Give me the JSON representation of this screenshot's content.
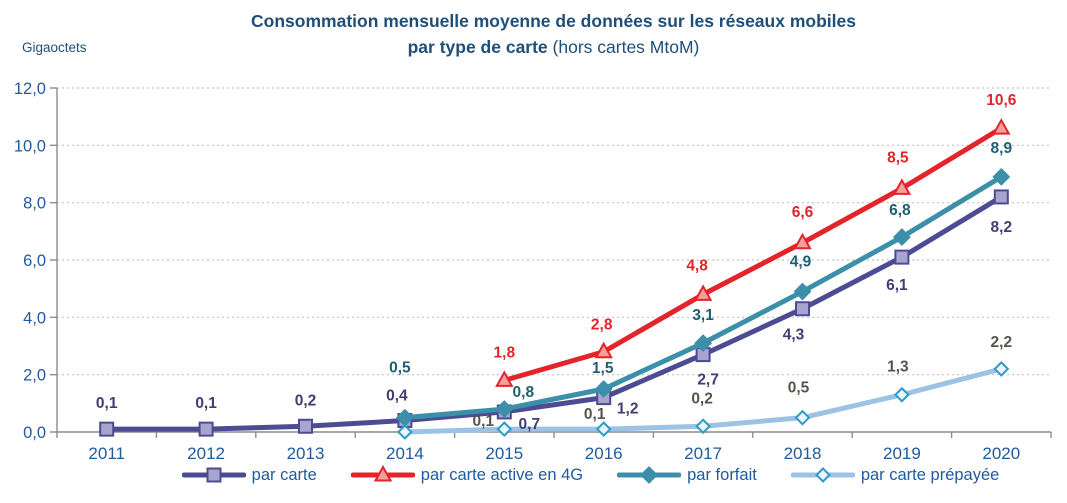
{
  "chart_data": {
    "type": "line",
    "title_line1": "Consommation mensuelle moyenne de données sur  les réseaux mobiles",
    "title_line2_bold": "par type de carte",
    "title_line2_normal": " (hors cartes MtoM)",
    "unit_label": "Gigaoctets",
    "title_color": "#1F4E79",
    "axis_text_color": "#215A9E",
    "grid_color": "#C3C3C3",
    "axis_color": "#8C8C8C",
    "background": "#FFFFFF",
    "grid": "dotted-horizontal",
    "legend_position": "bottom",
    "ylim": [
      0,
      12
    ],
    "categories": [
      "2011",
      "2012",
      "2013",
      "2014",
      "2015",
      "2016",
      "2017",
      "2018",
      "2019",
      "2020"
    ],
    "y_ticks": [
      {
        "v": 0,
        "label": "0,0"
      },
      {
        "v": 2,
        "label": "2,0"
      },
      {
        "v": 4,
        "label": "4,0"
      },
      {
        "v": 6,
        "label": "6,0"
      },
      {
        "v": 8,
        "label": "8,0"
      },
      {
        "v": 10,
        "label": "10,0"
      },
      {
        "v": 12,
        "label": "12,0"
      }
    ],
    "series": [
      {
        "name": "par carte",
        "line_color": "#4D4C93",
        "marker": "square",
        "marker_fill": "#A7A5CF",
        "marker_stroke": "#4D4C93",
        "label_color": "#3F3E70",
        "points": [
          {
            "x": "2011",
            "y": 0.1,
            "label": "0,1",
            "dx": 0,
            "dy": -26
          },
          {
            "x": "2012",
            "y": 0.1,
            "label": "0,1",
            "dx": 0,
            "dy": -26
          },
          {
            "x": "2013",
            "y": 0.2,
            "label": "0,2",
            "dx": 0,
            "dy": -26
          },
          {
            "x": "2014",
            "y": 0.4,
            "label": "0,4",
            "dx": -8,
            "dy": -25
          },
          {
            "x": "2015",
            "y": 0.7,
            "label": "0,7",
            "dx": 25,
            "dy": 12
          },
          {
            "x": "2016",
            "y": 1.2,
            "label": "1,2",
            "dx": 24,
            "dy": 11
          },
          {
            "x": "2017",
            "y": 2.7,
            "label": "2,7",
            "dx": 5,
            "dy": 25
          },
          {
            "x": "2018",
            "y": 4.3,
            "label": "4,3",
            "dx": -9,
            "dy": 26
          },
          {
            "x": "2019",
            "y": 6.1,
            "label": "6,1",
            "dx": -5,
            "dy": 28
          },
          {
            "x": "2020",
            "y": 8.2,
            "label": "8,2",
            "dx": 0,
            "dy": 30
          }
        ]
      },
      {
        "name": "par carte active en 4G",
        "line_color": "#E4242B",
        "marker": "triangle",
        "marker_fill": "#F5A09B",
        "marker_stroke": "#E4242B",
        "label_color": "#E4242B",
        "points": [
          {
            "x": "2015",
            "y": 1.8,
            "label": "1,8",
            "dx": 0,
            "dy": -28
          },
          {
            "x": "2016",
            "y": 2.8,
            "label": "2,8",
            "dx": -2,
            "dy": -27
          },
          {
            "x": "2017",
            "y": 4.8,
            "label": "4,8",
            "dx": -6,
            "dy": -29
          },
          {
            "x": "2018",
            "y": 6.6,
            "label": "6,6",
            "dx": 0,
            "dy": -31
          },
          {
            "x": "2019",
            "y": 8.5,
            "label": "8,5",
            "dx": -4,
            "dy": -31
          },
          {
            "x": "2020",
            "y": 10.6,
            "label": "10,6",
            "dx": 0,
            "dy": -28
          }
        ]
      },
      {
        "name": "par forfait",
        "line_color": "#3B8FA9",
        "marker": "diamond",
        "marker_fill": "#3B8FA9",
        "marker_stroke": "#3B8FA9",
        "label_color": "#1F5F73",
        "points": [
          {
            "x": "2014",
            "y": 0.5,
            "label": "0,5",
            "dx": -5,
            "dy": -50
          },
          {
            "x": "2015",
            "y": 0.8,
            "label": "0,8",
            "dx": 19,
            "dy": -17
          },
          {
            "x": "2016",
            "y": 1.5,
            "label": "1,5",
            "dx": -1,
            "dy": -21
          },
          {
            "x": "2017",
            "y": 3.1,
            "label": "3,1",
            "dx": 0,
            "dy": -28
          },
          {
            "x": "2018",
            "y": 4.9,
            "label": "4,9",
            "dx": -2,
            "dy": -30
          },
          {
            "x": "2019",
            "y": 6.8,
            "label": "6,8",
            "dx": -2,
            "dy": -27
          },
          {
            "x": "2020",
            "y": 8.9,
            "label": "8,9",
            "dx": 0,
            "dy": -29
          }
        ]
      },
      {
        "name": "par carte prépayée",
        "line_color": "#9CC3E5",
        "marker": "diamond-open",
        "marker_fill": "#EAF4FB",
        "marker_stroke": "#2F9AC5",
        "label_color": "#57544B",
        "points": [
          {
            "x": "2014",
            "y": 0.0,
            "label": "",
            "dx": 0,
            "dy": 0
          },
          {
            "x": "2015",
            "y": 0.1,
            "label": "0,1",
            "dx": -21,
            "dy": -8
          },
          {
            "x": "2016",
            "y": 0.1,
            "label": "0,1",
            "dx": -9,
            "dy": -15
          },
          {
            "x": "2017",
            "y": 0.2,
            "label": "0,2",
            "dx": -1,
            "dy": -28
          },
          {
            "x": "2018",
            "y": 0.5,
            "label": "0,5",
            "dx": -4,
            "dy": -30
          },
          {
            "x": "2019",
            "y": 1.3,
            "label": "1,3",
            "dx": -4,
            "dy": -28
          },
          {
            "x": "2020",
            "y": 2.2,
            "label": "2,2",
            "dx": 0,
            "dy": -27
          }
        ]
      }
    ]
  }
}
